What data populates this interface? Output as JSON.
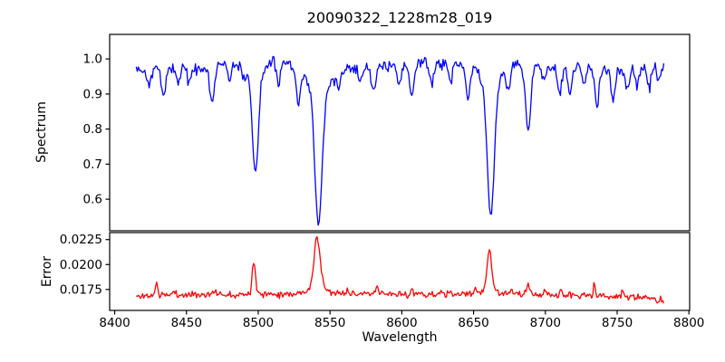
{
  "chart": {
    "title": "20090322_1228m28_019",
    "xlabel": "Wavelength",
    "background_color": "#ffffff",
    "spine_color": "#000000",
    "x_ticks": [
      8400,
      8450,
      8500,
      8550,
      8600,
      8650,
      8700,
      8750,
      8800
    ],
    "xlim": [
      8396.5,
      8800.5
    ],
    "grid": false,
    "legend": "none"
  },
  "chart_data": [
    {
      "id": "spectrum",
      "type": "line",
      "ylabel": "Spectrum",
      "color": "#0000ff",
      "ylim": [
        0.51,
        1.07
      ],
      "y_ticks": [
        1.0,
        0.9,
        0.8,
        0.7,
        0.6
      ],
      "y_tick_labels": [
        "1.0",
        "0.9",
        "0.8",
        "0.7",
        "0.6"
      ],
      "x_range": [
        8415,
        8783
      ],
      "sample_step": 0.75,
      "noise_sigma": 0.008,
      "seed": 42,
      "continuum_anchors": [
        [
          8415,
          0.97
        ],
        [
          8428,
          0.973
        ],
        [
          8442,
          0.976
        ],
        [
          8456,
          0.972
        ],
        [
          8470,
          0.979
        ],
        [
          8486,
          0.986
        ],
        [
          8506,
          0.991
        ],
        [
          8520,
          0.987
        ],
        [
          8536,
          0.983
        ],
        [
          8552,
          0.974
        ],
        [
          8566,
          0.972
        ],
        [
          8582,
          0.976
        ],
        [
          8600,
          0.981
        ],
        [
          8616,
          0.986
        ],
        [
          8632,
          0.989
        ],
        [
          8648,
          0.991
        ],
        [
          8664,
          0.989
        ],
        [
          8680,
          0.986
        ],
        [
          8698,
          0.981
        ],
        [
          8714,
          0.978
        ],
        [
          8730,
          0.976
        ],
        [
          8746,
          0.973
        ],
        [
          8762,
          0.976
        ],
        [
          8776,
          0.981
        ],
        [
          8783,
          0.983
        ]
      ],
      "absorption_lines": [
        [
          8424,
          0.045,
          1.4
        ],
        [
          8434,
          0.08,
          1.5
        ],
        [
          8444,
          0.04,
          1.2
        ],
        [
          8452,
          0.05,
          1.2
        ],
        [
          8468,
          0.1,
          1.7
        ],
        [
          8480,
          0.04,
          1.2
        ],
        [
          8490,
          0.035,
          1.1
        ],
        [
          8498,
          0.27,
          2.0
        ],
        [
          8498,
          0.045,
          5.0
        ],
        [
          8514,
          0.06,
          1.3
        ],
        [
          8528,
          0.105,
          1.5
        ],
        [
          8542,
          0.36,
          2.4
        ],
        [
          8542,
          0.09,
          7.0
        ],
        [
          8556,
          0.045,
          1.2
        ],
        [
          8571,
          0.04,
          1.2
        ],
        [
          8580,
          0.065,
          1.5
        ],
        [
          8598,
          0.055,
          1.4
        ],
        [
          8607,
          0.085,
          1.5
        ],
        [
          8621,
          0.06,
          1.4
        ],
        [
          8634,
          0.05,
          1.3
        ],
        [
          8646,
          0.105,
          1.6
        ],
        [
          8662,
          0.36,
          2.3
        ],
        [
          8662,
          0.08,
          6.0
        ],
        [
          8674,
          0.065,
          1.4
        ],
        [
          8688,
          0.185,
          1.8
        ],
        [
          8699,
          0.05,
          1.3
        ],
        [
          8710,
          0.08,
          1.5
        ],
        [
          8717,
          0.07,
          1.4
        ],
        [
          8727,
          0.05,
          1.3
        ],
        [
          8736,
          0.105,
          1.6
        ],
        [
          8747,
          0.085,
          1.5
        ],
        [
          8757,
          0.07,
          1.4
        ],
        [
          8764,
          0.05,
          1.2
        ],
        [
          8772,
          0.06,
          1.4
        ],
        [
          8779,
          0.05,
          1.2
        ]
      ]
    },
    {
      "id": "error",
      "type": "line",
      "ylabel": "Error",
      "color": "#ff0000",
      "ylim": [
        0.0154,
        0.0232
      ],
      "y_ticks": [
        0.0225,
        0.02,
        0.0175
      ],
      "y_tick_labels": [
        "0.0225",
        "0.0200",
        "0.0175"
      ],
      "x_range": [
        8415,
        8783
      ],
      "sample_step": 0.75,
      "noise_sigma": 0.00016,
      "seed": 11,
      "baseline_anchors": [
        [
          8415,
          0.0168
        ],
        [
          8430,
          0.01692
        ],
        [
          8460,
          0.017
        ],
        [
          8500,
          0.01703
        ],
        [
          8540,
          0.01712
        ],
        [
          8580,
          0.01705
        ],
        [
          8620,
          0.017
        ],
        [
          8660,
          0.01705
        ],
        [
          8700,
          0.01696
        ],
        [
          8730,
          0.01688
        ],
        [
          8755,
          0.01678
        ],
        [
          8772,
          0.0166
        ],
        [
          8783,
          0.01642
        ]
      ],
      "peaks": [
        [
          8429,
          0.00115,
          0.9
        ],
        [
          8441,
          0.0004,
          0.8
        ],
        [
          8470,
          0.00035,
          0.9
        ],
        [
          8497,
          0.0033,
          1.2
        ],
        [
          8541,
          0.0048,
          2.0
        ],
        [
          8541,
          0.0008,
          5.0
        ],
        [
          8562,
          0.00055,
          0.8
        ],
        [
          8583,
          0.00065,
          0.8
        ],
        [
          8607,
          0.00045,
          0.8
        ],
        [
          8628,
          0.0004,
          0.7
        ],
        [
          8651,
          0.0009,
          0.6
        ],
        [
          8661,
          0.0039,
          1.5
        ],
        [
          8661,
          0.0006,
          4.0
        ],
        [
          8676,
          0.00065,
          0.7
        ],
        [
          8688,
          0.00125,
          0.8
        ],
        [
          8700,
          0.00045,
          0.7
        ],
        [
          8711,
          0.0006,
          0.7
        ],
        [
          8734,
          0.0013,
          0.6
        ],
        [
          8754,
          0.0007,
          0.7
        ]
      ]
    }
  ]
}
